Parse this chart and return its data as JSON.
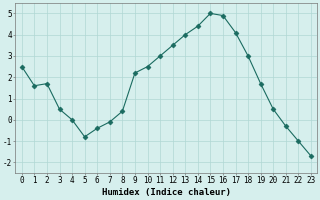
{
  "x": [
    0,
    1,
    2,
    3,
    4,
    5,
    6,
    7,
    8,
    9,
    10,
    11,
    12,
    13,
    14,
    15,
    16,
    17,
    18,
    19,
    20,
    21,
    22,
    23
  ],
  "y": [
    2.5,
    1.6,
    1.7,
    0.5,
    0.0,
    -0.8,
    -0.4,
    -0.1,
    0.4,
    2.2,
    2.5,
    3.0,
    3.5,
    4.0,
    4.4,
    5.0,
    4.9,
    4.1,
    3.0,
    1.7,
    0.5,
    -0.3,
    -1.0,
    -1.7
  ],
  "line_color": "#1a6b60",
  "marker": "D",
  "marker_size": 2.5,
  "bg_color": "#d6efed",
  "grid_color": "#b0d8d4",
  "xlabel": "Humidex (Indice chaleur)",
  "xlim": [
    -0.5,
    23.5
  ],
  "ylim": [
    -2.5,
    5.5
  ],
  "xtick_labels": [
    "0",
    "1",
    "2",
    "3",
    "4",
    "5",
    "6",
    "7",
    "8",
    "9",
    "10",
    "11",
    "12",
    "13",
    "14",
    "15",
    "16",
    "17",
    "18",
    "19",
    "20",
    "21",
    "22",
    "23"
  ],
  "yticks": [
    -2,
    -1,
    0,
    1,
    2,
    3,
    4,
    5
  ],
  "xlabel_fontsize": 6.5,
  "tick_fontsize": 5.5
}
